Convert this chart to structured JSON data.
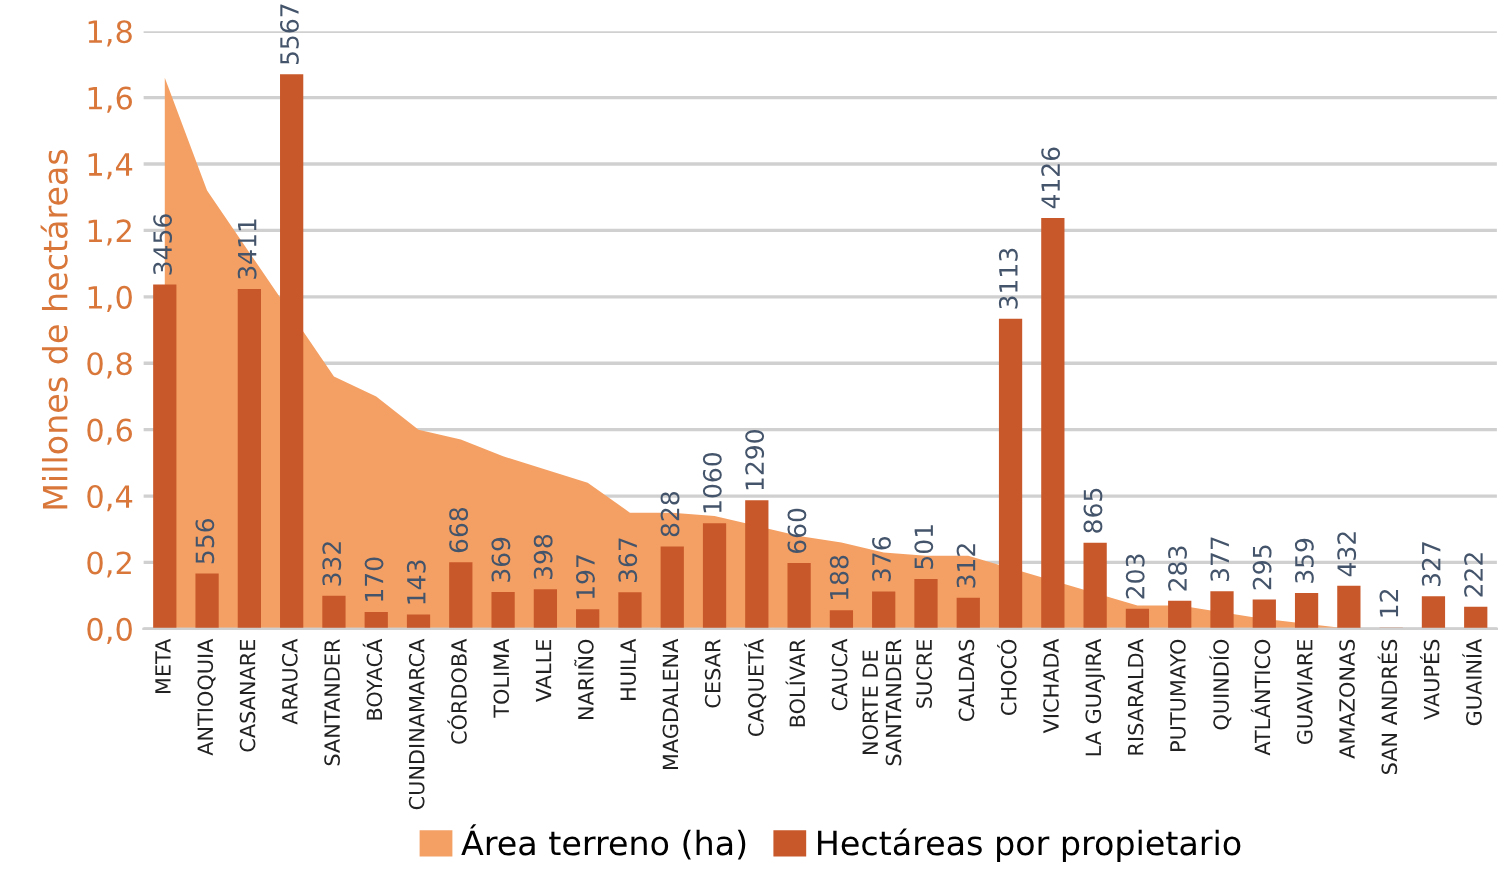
{
  "chart_data": {
    "type": "bar",
    "ylabel": "Millones de hectáreas",
    "categories": [
      "META",
      "ANTIOQUIA",
      "CASANARE",
      "ARAUCA",
      "SANTANDER",
      "BOYACÁ",
      "CUNDINAMARCA",
      "CÓRDOBA",
      "TOLIMA",
      "VALLE",
      "NARIÑO",
      "HUILA",
      "MAGDALENA",
      "CESAR",
      "CAQUETÁ",
      "BOLÍVAR",
      "CAUCA",
      "NORTE DE\nSANTANDER",
      "SUCRE",
      "CALDAS",
      "CHOCÓ",
      "VICHADA",
      "LA GUAJIRA",
      "RISARALDA",
      "PUTUMAYO",
      "QUINDÍO",
      "ATLÁNTICO",
      "GUAVIARE",
      "AMAZONAS",
      "SAN ANDRÉS",
      "VAUPÉS",
      "GUAINÍA"
    ],
    "series": [
      {
        "name": "Área terreno (ha)",
        "type": "area",
        "color": "#f4a064",
        "values": [
          1.66,
          1.32,
          null,
          null,
          0.76,
          0.7,
          0.6,
          0.57,
          0.52,
          0.48,
          0.44,
          0.35,
          0.35,
          0.34,
          null,
          0.28,
          0.26,
          0.23,
          0.22,
          0.22,
          null,
          null,
          null,
          0.07,
          0.07,
          null,
          0.03,
          null,
          0,
          0,
          0,
          0
        ]
      },
      {
        "name": "Hectáreas por propietario",
        "axis": "y2",
        "color": "#c8582a",
        "values": [
          3456,
          556,
          3411,
          5567,
          332,
          170,
          143,
          668,
          369,
          398,
          197,
          367,
          828,
          1060,
          1290,
          660,
          188,
          376,
          501,
          312,
          3113,
          4126,
          865,
          203,
          283,
          377,
          295,
          359,
          432,
          12,
          327,
          222
        ],
        "value_labels": [
          "3456",
          "556",
          "3411",
          "5567",
          "332",
          "170",
          "143",
          "668",
          "369",
          "398",
          "197",
          "367",
          "828",
          "1060",
          "1290",
          "660",
          "188",
          "376",
          "501",
          "312",
          "3113",
          "4126",
          "865",
          "203",
          "283",
          "377",
          "295",
          "359",
          "432",
          "12",
          "327",
          "222"
        ]
      }
    ],
    "ylim": [
      0,
      1.8
    ],
    "yticks": [
      {
        "value": 0,
        "label": "0,0"
      },
      {
        "value": 0.2,
        "label": "0,2"
      },
      {
        "value": 0.4,
        "label": "0,4"
      },
      {
        "value": 0.6,
        "label": "0,6"
      },
      {
        "value": 0.8,
        "label": "0,8"
      },
      {
        "value": 1.0,
        "label": "1,0"
      },
      {
        "value": 1.2,
        "label": "1,2"
      },
      {
        "value": 1.4,
        "label": "1,4"
      },
      {
        "value": 1.6,
        "label": "1,6"
      },
      {
        "value": 1.8,
        "label": "1,8"
      }
    ],
    "y2lim": [
      0,
      6000
    ],
    "grid": "y",
    "legend": "bottom"
  }
}
